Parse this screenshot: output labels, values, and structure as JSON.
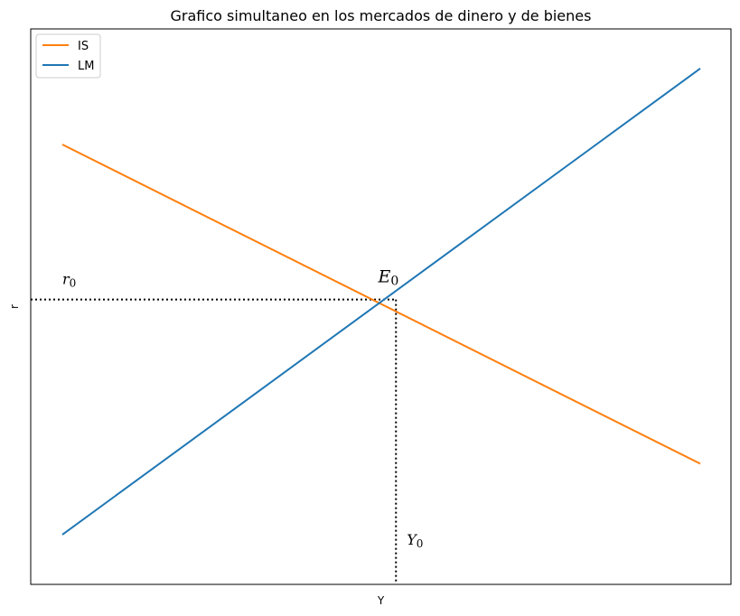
{
  "chart_data": {
    "type": "line",
    "title": "Grafico simultaneo en los mercados de dinero y de bienes",
    "xlabel": "Y",
    "ylabel": "r",
    "xlim": [
      0,
      100
    ],
    "ylim": [
      0,
      100
    ],
    "xticks": [],
    "yticks": [],
    "grid": false,
    "legend_position": "top-left",
    "series": [
      {
        "name": "IS",
        "color": "#ff7f0e",
        "x": [
          0,
          100
        ],
        "y": [
          82,
          19
        ]
      },
      {
        "name": "LM",
        "color": "#1f77b4",
        "x": [
          0,
          100
        ],
        "y": [
          5,
          97
        ]
      }
    ],
    "guides": {
      "color": "#000000",
      "style": "dotted",
      "hline_y": 51.4,
      "vline_x": 52.3
    },
    "annotations": [
      {
        "id": "r0",
        "base": "r",
        "sub": "0",
        "x": 0,
        "y": 54.5
      },
      {
        "id": "E0",
        "base": "E",
        "sub": "0",
        "x": 49.5,
        "y": 54.8
      },
      {
        "id": "Y0",
        "base": "Y",
        "sub": "0",
        "x": 54.0,
        "y": 3.0
      }
    ]
  }
}
